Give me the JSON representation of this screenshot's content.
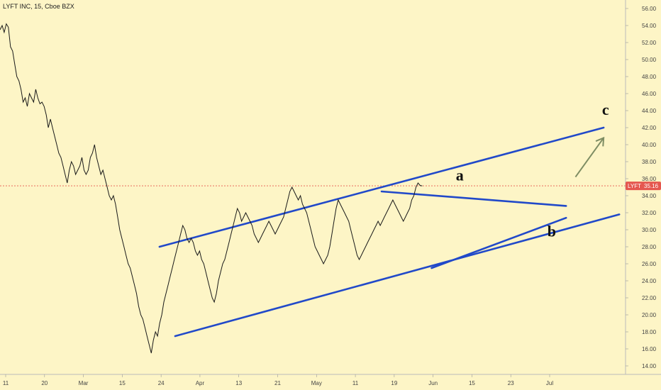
{
  "chart_data": {
    "type": "line",
    "title": "LYFT INC, 15, Cboe BZX",
    "price_label": "LYFT",
    "last_price": "35.16",
    "y_axis": {
      "min": 13.0,
      "max": 57.0,
      "ticks": [
        "56.00",
        "54.00",
        "52.00",
        "50.00",
        "48.00",
        "46.00",
        "44.00",
        "42.00",
        "40.00",
        "38.00",
        "36.00",
        "34.00",
        "32.00",
        "30.00",
        "28.00",
        "26.00",
        "24.00",
        "22.00",
        "20.00",
        "18.00",
        "16.00",
        "14.00"
      ]
    },
    "x_axis": {
      "ticks": [
        "11",
        "20",
        "Mar",
        "15",
        "24",
        "Apr",
        "13",
        "21",
        "May",
        "11",
        "19",
        "Jun",
        "15",
        "23",
        "Jul"
      ]
    },
    "grid": false,
    "series": [
      {
        "values": [
          53.5,
          54.0,
          53.2,
          54.2,
          53.8,
          51.5,
          51.0,
          49.5,
          48.0,
          47.5,
          46.5,
          45.0,
          45.5,
          44.5,
          46.0,
          45.5,
          45.0,
          46.5,
          45.5,
          44.8,
          45.0,
          44.5,
          43.5,
          42.0,
          43.0,
          42.0,
          41.0,
          40.0,
          39.0,
          38.5,
          37.5,
          36.5,
          35.5,
          37.0,
          38.0,
          37.5,
          36.5,
          37.0,
          37.5,
          38.5,
          37.0,
          36.5,
          37.0,
          38.5,
          39.0,
          40.0,
          38.5,
          37.5,
          36.5,
          37.0,
          36.0,
          35.0,
          34.0,
          33.5,
          34.0,
          33.0,
          31.5,
          30.0,
          29.0,
          28.0,
          27.0,
          26.0,
          25.5,
          24.5,
          23.5,
          22.5,
          21.0,
          20.0,
          19.5,
          18.5,
          17.5,
          16.5,
          15.5,
          17.0,
          18.0,
          17.5,
          19.0,
          20.0,
          21.5,
          22.5,
          23.5,
          24.5,
          25.5,
          26.5,
          27.5,
          28.5,
          29.5,
          30.5,
          30.0,
          29.0,
          28.5,
          29.0,
          28.5,
          27.5,
          27.0,
          27.5,
          26.5,
          26.0,
          25.0,
          24.0,
          23.0,
          22.0,
          21.5,
          22.5,
          24.0,
          25.0,
          26.0,
          26.5,
          27.5,
          28.5,
          29.5,
          30.5,
          31.5,
          32.5,
          32.0,
          31.0,
          31.5,
          32.0,
          31.5,
          31.0,
          30.5,
          29.5,
          29.0,
          28.5,
          29.0,
          29.5,
          30.0,
          30.5,
          31.0,
          30.5,
          30.0,
          29.5,
          30.0,
          30.5,
          31.0,
          31.5,
          32.5,
          33.5,
          34.5,
          35.0,
          34.5,
          34.0,
          33.5,
          34.0,
          33.0,
          32.5,
          32.0,
          31.0,
          30.0,
          29.0,
          28.0,
          27.5,
          27.0,
          26.5,
          26.0,
          26.5,
          27.0,
          28.0,
          29.5,
          31.0,
          32.5,
          33.5,
          33.0,
          32.5,
          32.0,
          31.5,
          31.0,
          30.0,
          29.0,
          28.0,
          27.0,
          26.5,
          27.0,
          27.5,
          28.0,
          28.5,
          29.0,
          29.5,
          30.0,
          30.5,
          31.0,
          30.5,
          31.0,
          31.5,
          32.0,
          32.5,
          33.0,
          33.5,
          33.0,
          32.5,
          32.0,
          31.5,
          31.0,
          31.5,
          32.0,
          32.5,
          33.5,
          34.0,
          35.0,
          35.5,
          35.2,
          35.16
        ]
      }
    ],
    "annotations": [
      {
        "label": "a",
        "x": 0.735,
        "y": 35.8
      },
      {
        "label": "b",
        "x": 0.882,
        "y": 29.2
      },
      {
        "label": "c",
        "x": 0.968,
        "y": 43.5
      }
    ],
    "trendlines": [
      {
        "from": [
          0.255,
          28.0
        ],
        "to": [
          0.965,
          42.0
        ]
      },
      {
        "from": [
          0.28,
          17.5
        ],
        "to": [
          0.99,
          31.8
        ]
      },
      {
        "from": [
          0.61,
          34.5
        ],
        "to": [
          0.905,
          32.8
        ]
      },
      {
        "from": [
          0.69,
          25.5
        ],
        "to": [
          0.905,
          31.4
        ]
      }
    ],
    "arrow": {
      "from": [
        0.92,
        36.2
      ],
      "to": [
        0.965,
        40.8
      ]
    },
    "colors": {
      "trendline": "#2149c9",
      "price": "#1a1a1a",
      "arrow": "#7e8d63",
      "price_tag": "#e5574f",
      "background": "#fdf5c6"
    }
  }
}
